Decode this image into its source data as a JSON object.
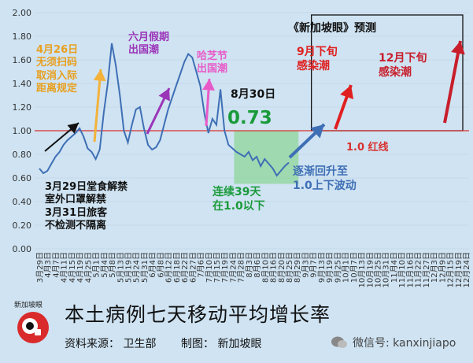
{
  "chart_data": {
    "type": "line",
    "title": "本土病例七天移动平均增长率",
    "ylim": [
      0,
      2.0
    ],
    "yticks": [
      "0.00",
      "0.20",
      "0.40",
      "0.60",
      "0.80",
      "1.00",
      "1.20",
      "1.40",
      "1.60",
      "1.80",
      "2.00"
    ],
    "x_tick_labels": [
      "3月29日",
      "4月3日",
      "4月7日",
      "4月11日",
      "4月15日",
      "4月19日",
      "4月25日",
      "5月1日",
      "5月4日",
      "5月8日",
      "5月13日",
      "5月19日",
      "5月24日",
      "5月31日",
      "6月4日",
      "6月8日",
      "6月12日",
      "6月18日",
      "6月22日",
      "6月27日",
      "7月6日",
      "7月10日",
      "7月15日",
      "7月19日",
      "7月24日",
      "7月28日",
      "8月3日",
      "8月6日",
      "8月10日",
      "8月16日",
      "8月20日",
      "8月25日",
      "8月29日",
      "9月3日",
      "9月7日",
      "9月13日",
      "9月19日",
      "9月25日",
      "10月1日",
      "10月7日",
      "10月13日",
      "10月19日",
      "10月25日",
      "10月31日",
      "11月4日",
      "11月10日",
      "11月16日",
      "11月22日",
      "11月27日",
      "12月3日",
      "12月9日",
      "12月15日",
      "12月19日",
      "12月24日"
    ],
    "reference_line": {
      "value": 1.0,
      "color": "#d9322f",
      "label": "1.0 红线"
    },
    "series": [
      {
        "color": "#3f6fb5",
        "points": [
          [
            0,
            0.68
          ],
          [
            0.5,
            0.64
          ],
          [
            1,
            0.66
          ],
          [
            1.5,
            0.72
          ],
          [
            2,
            0.78
          ],
          [
            2.5,
            0.82
          ],
          [
            3,
            0.88
          ],
          [
            3.5,
            0.92
          ],
          [
            4,
            0.95
          ],
          [
            4.5,
            0.98
          ],
          [
            5,
            1.02
          ],
          [
            5.5,
            0.95
          ],
          [
            6,
            0.85
          ],
          [
            6.5,
            0.82
          ],
          [
            7,
            0.76
          ],
          [
            7.5,
            0.84
          ],
          [
            8,
            1.15
          ],
          [
            8.5,
            1.4
          ],
          [
            9,
            1.74
          ],
          [
            9.5,
            1.55
          ],
          [
            10,
            1.3
          ],
          [
            10.5,
            1.0
          ],
          [
            11,
            0.9
          ],
          [
            11.5,
            1.05
          ],
          [
            12,
            1.18
          ],
          [
            12.5,
            1.2
          ],
          [
            13,
            1.02
          ],
          [
            13.5,
            0.88
          ],
          [
            14,
            0.84
          ],
          [
            14.5,
            0.86
          ],
          [
            15,
            0.92
          ],
          [
            15.5,
            1.05
          ],
          [
            16,
            1.18
          ],
          [
            16.5,
            1.28
          ],
          [
            17,
            1.38
          ],
          [
            17.5,
            1.48
          ],
          [
            18,
            1.58
          ],
          [
            18.5,
            1.65
          ],
          [
            19,
            1.62
          ],
          [
            19.5,
            1.5
          ],
          [
            20,
            1.38
          ],
          [
            20.5,
            1.15
          ],
          [
            21,
            0.98
          ],
          [
            21.5,
            1.1
          ],
          [
            22,
            1.05
          ],
          [
            22.5,
            1.35
          ],
          [
            23,
            1.0
          ],
          [
            23.5,
            0.88
          ],
          [
            24,
            0.85
          ],
          [
            24.5,
            0.82
          ],
          [
            25,
            0.8
          ],
          [
            25.5,
            0.78
          ],
          [
            26,
            0.82
          ],
          [
            26.5,
            0.75
          ],
          [
            27,
            0.78
          ],
          [
            27.5,
            0.7
          ],
          [
            28,
            0.76
          ],
          [
            28.5,
            0.72
          ],
          [
            29,
            0.68
          ],
          [
            29.5,
            0.62
          ],
          [
            30,
            0.66
          ],
          [
            30.5,
            0.7
          ],
          [
            31,
            0.73
          ]
        ]
      }
    ],
    "forecast_arrows": [
      {
        "label": "逐渐回升至\n1.0上下波动",
        "color": "#3f6fb5"
      },
      {
        "label": "9月下旬\n感染潮",
        "color": "#e02020"
      },
      {
        "label": "12月下旬\n感染潮",
        "color": "#c81e2b"
      }
    ],
    "annotations": [
      {
        "text": "4月26日\n无须扫码\n取消入际\n距离规定",
        "color": "#e8a020"
      },
      {
        "text": "六月假期\n出国潮",
        "color": "#9b35b8"
      },
      {
        "text": "哈芝节\n出国潮",
        "color": "#e85ac8"
      },
      {
        "text": "8月30日",
        "color": "#111111"
      },
      {
        "text": "0.73",
        "color": "#1a9a3a"
      },
      {
        "text": "3月29日堂食解禁\n室外口罩解禁\n3月31日旅客\n不检测不隔离",
        "color": "#111111"
      },
      {
        "text": "连续39天\n在1.0以下",
        "color": "#1a9a3a"
      },
      {
        "text": "《新加坡眼》预测",
        "color": "#111111"
      }
    ]
  },
  "footer": {
    "title": "本土病例七天移动平均增长率",
    "source": "资料来源：  卫生部",
    "maker": "制图：  新加坡眼",
    "watermark": "微信号: kanxinjiapo",
    "logo_text": "新加坡眼"
  },
  "colors": {
    "background": "#cfe3f2",
    "plot": "#cfe3f2",
    "line": "#3f6fb5",
    "redline": "#d9322f",
    "green_box": "#8fd69a",
    "forecast_box": "#111111"
  }
}
